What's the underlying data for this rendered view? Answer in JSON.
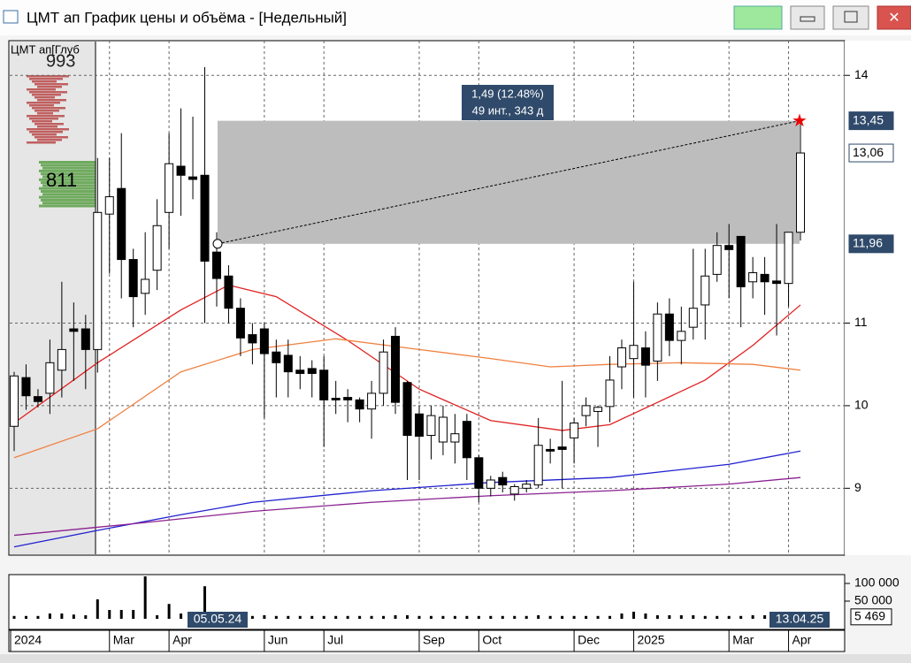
{
  "window": {
    "title": "ЦМТ ап График цены и объёма - [Недельный]"
  },
  "chart_data": {
    "type": "candlestick",
    "legend_label": "ЦМТ ап[Глуб",
    "book_labels": [
      "993",
      "811"
    ],
    "categories": [
      "2024",
      null,
      null,
      null,
      null,
      null,
      null,
      null,
      "Mar",
      null,
      null,
      null,
      null,
      "Apr",
      null,
      null,
      null,
      null,
      null,
      null,
      null,
      "Jun",
      null,
      null,
      null,
      null,
      "Jul",
      null,
      null,
      null,
      null,
      null,
      null,
      null,
      "Sep",
      null,
      null,
      null,
      null,
      "Oct",
      null,
      null,
      null,
      null,
      null,
      null,
      null,
      "Dec",
      null,
      null,
      null,
      null,
      "2025",
      null,
      null,
      null,
      null,
      null,
      null,
      null,
      "Mar",
      null,
      null,
      null,
      null,
      "Apr",
      null
    ],
    "open": [
      9.75,
      10.34,
      10.11,
      10.15,
      10.43,
      10.93,
      10.93,
      10.68,
      12.32,
      12.63,
      11.77,
      11.36,
      11.64,
      12.34,
      12.9,
      12.77,
      12.79,
      11.86,
      11.57,
      11.18,
      10.86,
      10.93,
      10.65,
      10.61,
      10.43,
      10.45,
      10.43,
      10.09,
      10.1,
      10.07,
      9.96,
      10.15,
      10.84,
      10.28,
      9.9,
      9.64,
      9.56,
      9.56,
      9.81,
      9.37,
      9.0,
      9.13,
      8.93,
      9.0,
      9.04,
      9.47,
      9.5,
      9.61,
      9.88,
      9.93,
      9.99,
      10.47,
      10.57,
      10.7,
      10.54,
      11.11,
      10.79,
      10.95,
      11.22,
      11.59,
      11.94,
      12.05,
      11.5,
      11.59,
      11.51,
      11.48,
      12.1
    ],
    "high": [
      10.41,
      10.5,
      10.2,
      10.8,
      11.5,
      11.25,
      11.1,
      13.0,
      13.0,
      13.3,
      11.9,
      12.1,
      12.5,
      13.3,
      13.6,
      13.5,
      14.1,
      12.1,
      11.7,
      11.3,
      11.0,
      11.0,
      10.8,
      10.8,
      10.6,
      10.55,
      10.6,
      10.3,
      10.2,
      10.1,
      10.3,
      10.8,
      10.95,
      10.3,
      10.0,
      10.0,
      10.0,
      9.9,
      9.9,
      9.4,
      9.15,
      9.2,
      9.05,
      9.1,
      9.85,
      9.6,
      10.3,
      9.85,
      10.1,
      10.0,
      10.6,
      10.8,
      11.5,
      10.9,
      11.25,
      11.3,
      11.2,
      11.9,
      11.9,
      12.1,
      12.2,
      12.05,
      11.8,
      11.8,
      12.2,
      12.1,
      13.45
    ],
    "low": [
      9.45,
      9.95,
      9.98,
      9.9,
      10.1,
      10.3,
      10.2,
      10.4,
      11.6,
      11.3,
      10.95,
      11.1,
      11.4,
      11.9,
      12.3,
      12.5,
      11.0,
      11.2,
      11.0,
      10.6,
      10.5,
      9.85,
      10.1,
      10.1,
      10.2,
      10.1,
      9.5,
      9.9,
      9.8,
      9.8,
      9.6,
      10.0,
      9.9,
      9.1,
      9.1,
      9.35,
      9.4,
      9.3,
      9.1,
      8.83,
      8.9,
      8.95,
      8.85,
      8.95,
      9.0,
      9.3,
      9.0,
      9.3,
      9.75,
      9.5,
      9.8,
      10.2,
      10.1,
      10.1,
      10.3,
      10.6,
      10.5,
      10.8,
      10.8,
      11.5,
      11.3,
      10.95,
      11.3,
      11.1,
      10.85,
      11.2,
      12.0
    ],
    "close": [
      10.36,
      10.12,
      10.05,
      10.52,
      10.68,
      10.9,
      10.68,
      12.34,
      12.53,
      11.77,
      11.32,
      11.53,
      12.18,
      12.93,
      12.79,
      12.74,
      11.75,
      11.54,
      11.18,
      10.82,
      10.76,
      10.63,
      10.52,
      10.41,
      10.39,
      10.39,
      10.07,
      10.07,
      10.07,
      9.96,
      10.15,
      10.65,
      10.04,
      9.64,
      9.63,
      9.88,
      9.86,
      9.66,
      9.37,
      9.0,
      9.1,
      9.04,
      9.02,
      9.05,
      9.52,
      9.45,
      9.47,
      9.79,
      10.0,
      9.98,
      10.31,
      10.7,
      10.73,
      10.49,
      11.11,
      10.79,
      10.9,
      11.18,
      11.57,
      11.94,
      11.89,
      11.44,
      11.61,
      11.5,
      11.48,
      12.1,
      13.06
    ],
    "moving_averages": [
      {
        "color": "#e02020",
        "x": [
          0,
          7,
          14,
          18,
          22,
          28,
          34,
          40,
          46,
          50,
          54,
          58,
          62,
          66
        ],
        "values": [
          9.79,
          10.52,
          11.16,
          11.46,
          11.32,
          10.79,
          10.2,
          9.82,
          9.7,
          9.77,
          10.04,
          10.31,
          10.73,
          11.22
        ]
      },
      {
        "color": "#f08040",
        "x": [
          0,
          7,
          14,
          20,
          27,
          34,
          40,
          45,
          50,
          56,
          62,
          66
        ],
        "values": [
          9.37,
          9.72,
          10.41,
          10.68,
          10.81,
          10.68,
          10.57,
          10.47,
          10.5,
          10.52,
          10.5,
          10.43
        ]
      },
      {
        "color": "#2020d0",
        "x": [
          0,
          7,
          14,
          20,
          30,
          40,
          50,
          60,
          66
        ],
        "values": [
          8.29,
          8.49,
          8.68,
          8.83,
          8.97,
          9.07,
          9.13,
          9.29,
          9.45
        ]
      },
      {
        "color": "#8a2090",
        "x": [
          0,
          10,
          20,
          30,
          40,
          50,
          60,
          66
        ],
        "values": [
          8.43,
          8.57,
          8.72,
          8.83,
          8.91,
          8.97,
          9.05,
          9.13
        ]
      }
    ],
    "ylim": [
      8.19,
      14.42
    ],
    "yticks": [
      9,
      10,
      11,
      14
    ],
    "price_markers": [
      {
        "value": 13.45,
        "label": "13,45"
      },
      {
        "value": 13.06,
        "label": "13,06"
      },
      {
        "value": 11.96,
        "label": "11,96"
      }
    ],
    "measure": {
      "label1": "1,49 (12.48%)",
      "label2": "49 инт., 343 д",
      "start_label": "05.05.24",
      "end_label": "13.04.25"
    },
    "volumes": [
      8000,
      8000,
      8000,
      15000,
      15000,
      12000,
      10000,
      55000,
      25000,
      25000,
      25000,
      120000,
      10000,
      42000,
      15000,
      12000,
      92000,
      10000,
      10000,
      8000,
      8000,
      10000,
      8000,
      8000,
      8000,
      8000,
      8000,
      8000,
      8000,
      8000,
      8000,
      8000,
      10000,
      10000,
      8000,
      8000,
      8000,
      8000,
      8000,
      8000,
      8000,
      8000,
      8000,
      8000,
      10000,
      8000,
      8000,
      8000,
      8000,
      8000,
      8000,
      15000,
      20000,
      15000,
      10000,
      10000,
      10000,
      10000,
      8000,
      8000,
      8000,
      8000,
      10000,
      10000,
      10000,
      10000,
      5469
    ],
    "volume_last_label": "5 469",
    "vlim": [
      0,
      125000
    ],
    "vticks": [
      {
        "value": 100000,
        "label": "100 000"
      },
      {
        "value": 50000,
        "label": "50 000"
      }
    ],
    "grid": true
  }
}
